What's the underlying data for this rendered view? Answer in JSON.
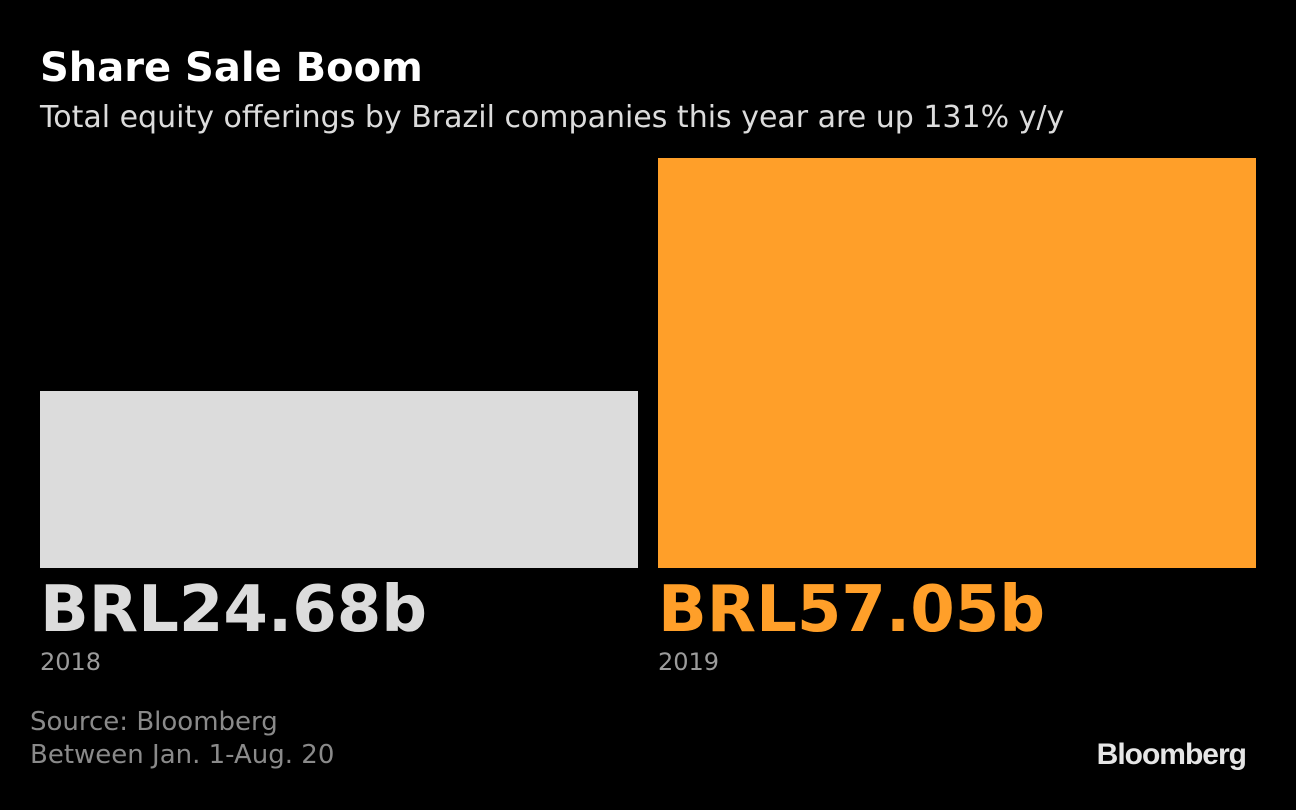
{
  "header": {
    "title": "Share Sale Boom",
    "subtitle": "Total equity offerings by Brazil companies this year are up 131% y/y"
  },
  "chart_data": {
    "type": "bar",
    "title": "Share Sale Boom",
    "subtitle": "Total equity offerings by Brazil companies this year are up 131% y/y",
    "categories": [
      "2018",
      "2019"
    ],
    "values": [
      24.68,
      57.05
    ],
    "value_labels": [
      "BRL24.68b",
      "BRL57.05b"
    ],
    "colors": [
      "#dcdcdc",
      "#ff9f29"
    ],
    "xlabel": "",
    "ylabel": "",
    "ylim": [
      0,
      57.05
    ],
    "grid": false,
    "legend": "none"
  },
  "footer": {
    "source": "Source: Bloomberg",
    "note": "Between Jan. 1-Aug. 20",
    "logo": "Bloomberg"
  }
}
